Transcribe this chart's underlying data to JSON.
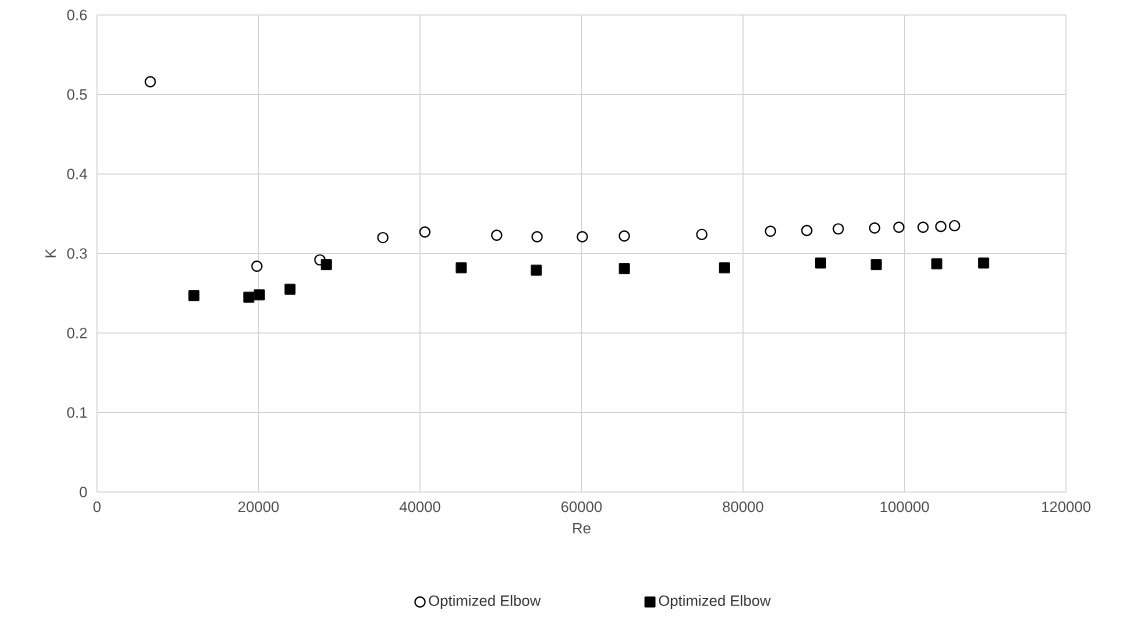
{
  "chart_data": {
    "type": "scatter",
    "xlabel": "Re",
    "ylabel": "K",
    "xlim": [
      0,
      120000
    ],
    "xticks": [
      0,
      20000,
      40000,
      60000,
      80000,
      100000,
      120000
    ],
    "ylim": [
      0,
      0.6
    ],
    "yticks": [
      0,
      0.1,
      0.2,
      0.3,
      0.4,
      0.5,
      0.6
    ],
    "grid": true,
    "legend": "bottom",
    "series": [
      {
        "name": "Optimized Elbow",
        "color": "#000000",
        "marker": "circle",
        "x": [
          6600,
          19800,
          27600,
          35400,
          40600,
          49500,
          54500,
          60100,
          65300,
          74900,
          83400,
          87900,
          91800,
          96300,
          99300,
          102300,
          104500,
          106200
        ],
        "values": [
          0.516,
          0.284,
          0.292,
          0.32,
          0.327,
          0.323,
          0.321,
          0.321,
          0.322,
          0.324,
          0.328,
          0.329,
          0.331,
          0.332,
          0.333,
          0.333,
          0.334,
          0.335
        ]
      },
      {
        "name": "Optimized Elbow",
        "color": "#000000",
        "marker": "square",
        "x": [
          12000,
          18800,
          20100,
          23900,
          28400,
          45100,
          54400,
          65300,
          77700,
          89600,
          96500,
          104000,
          109800
        ],
        "values": [
          0.247,
          0.245,
          0.248,
          0.255,
          0.286,
          0.282,
          0.279,
          0.281,
          0.282,
          0.288,
          0.286,
          0.287,
          0.288
        ]
      }
    ]
  }
}
